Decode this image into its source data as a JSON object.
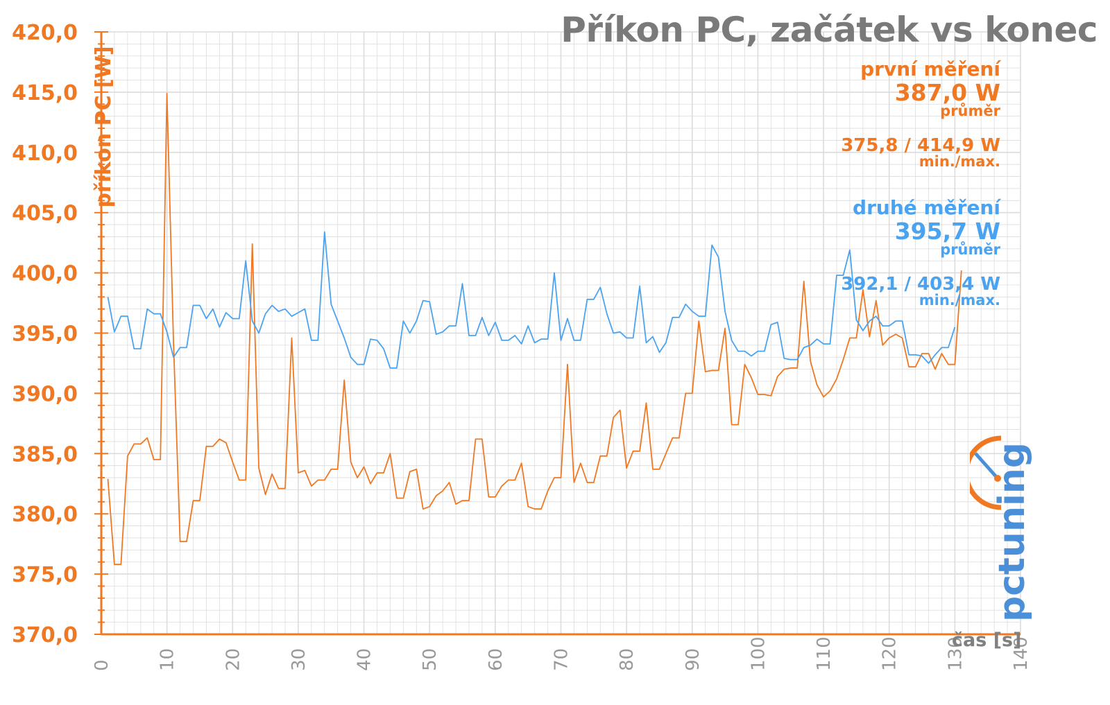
{
  "chart_data": {
    "type": "line",
    "title": "Příkon PC, začátek vs konec",
    "xlabel": "čas [s]",
    "ylabel": "příkon PC [W]",
    "xlim": [
      0,
      140
    ],
    "ylim": [
      370,
      420
    ],
    "xticks": [
      0,
      10,
      20,
      30,
      40,
      50,
      60,
      70,
      80,
      90,
      100,
      110,
      120,
      130,
      140
    ],
    "yticks": [
      370,
      375,
      380,
      385,
      390,
      395,
      400,
      405,
      410,
      415,
      420
    ],
    "ytick_labels": [
      "370,0",
      "375,0",
      "380,0",
      "385,0",
      "390,0",
      "395,0",
      "400,0",
      "405,0",
      "410,0",
      "415,0",
      "420,0"
    ],
    "grid": true,
    "series": [
      {
        "name": "první měření",
        "color": "#f07822",
        "stats": {
          "avg": "387,0 W",
          "avg_label": "průměr",
          "minmax": "375,8 / 414,9 W",
          "minmax_label": "min./max."
        },
        "x": [
          1,
          2,
          3,
          4,
          5,
          6,
          7,
          8,
          9,
          10,
          11,
          12,
          13,
          14,
          15,
          16,
          17,
          18,
          19,
          20,
          21,
          22,
          23,
          24,
          25,
          26,
          27,
          28,
          29,
          30,
          31,
          32,
          33,
          34,
          35,
          36,
          37,
          38,
          39,
          40,
          41,
          42,
          43,
          44,
          45,
          46,
          47,
          48,
          49,
          50,
          51,
          52,
          53,
          54,
          55,
          56,
          57,
          58,
          59,
          60,
          61,
          62,
          63,
          64,
          65,
          66,
          67,
          68,
          69,
          70,
          71,
          72,
          73,
          74,
          75,
          76,
          77,
          78,
          79,
          80,
          81,
          82,
          83,
          84,
          85,
          86,
          87,
          88,
          89,
          90,
          91,
          92,
          93,
          94,
          95,
          96,
          97,
          98,
          99,
          100,
          101,
          102,
          103,
          104,
          105,
          106,
          107,
          108,
          109,
          110,
          111,
          112,
          113,
          114,
          115,
          116,
          117,
          118,
          119,
          120,
          121,
          122,
          123,
          124,
          125,
          126,
          127,
          128,
          129,
          130,
          131
        ],
        "values": [
          382.9,
          375.8,
          375.8,
          384.8,
          385.8,
          385.8,
          386.3,
          384.5,
          384.5,
          414.9,
          394.2,
          377.7,
          377.7,
          381.1,
          381.1,
          385.6,
          385.6,
          386.2,
          385.9,
          384.3,
          382.8,
          382.8,
          402.4,
          383.8,
          381.6,
          383.3,
          382.1,
          382.1,
          394.6,
          383.4,
          383.6,
          382.3,
          382.8,
          382.8,
          383.7,
          383.7,
          391.1,
          384.3,
          383.0,
          383.9,
          382.5,
          383.4,
          383.4,
          385.0,
          381.3,
          381.3,
          383.5,
          383.7,
          380.4,
          380.6,
          381.5,
          381.9,
          382.6,
          380.8,
          381.1,
          381.1,
          386.2,
          386.2,
          381.4,
          381.4,
          382.3,
          382.8,
          382.8,
          384.2,
          380.6,
          380.4,
          380.4,
          381.9,
          383.0,
          383.0,
          392.4,
          382.6,
          384.2,
          382.6,
          382.6,
          384.8,
          384.8,
          388.0,
          388.6,
          383.8,
          385.2,
          385.2,
          389.2,
          383.7,
          383.7,
          385.0,
          386.3,
          386.3,
          390.0,
          390.0,
          396.0,
          391.8,
          391.9,
          391.9,
          395.4,
          387.4,
          387.4,
          392.4,
          391.3,
          389.9,
          389.9,
          389.8,
          391.4,
          392.0,
          392.1,
          392.1,
          399.3,
          392.7,
          390.7,
          389.7,
          390.2,
          391.2,
          392.8,
          394.6,
          394.6,
          398.6,
          394.7,
          397.7,
          394.0,
          394.6,
          394.9,
          394.6,
          392.2,
          392.2,
          393.3,
          393.3,
          392.0,
          393.3,
          392.4,
          392.4,
          400.2
        ]
      },
      {
        "name": "druhé měření",
        "color": "#4aa3f0",
        "stats": {
          "avg": "395,7 W",
          "avg_label": "průměr",
          "minmax": "392,1 / 403,4 W",
          "minmax_label": "min./max."
        },
        "x": [
          1,
          2,
          3,
          4,
          5,
          6,
          7,
          8,
          9,
          10,
          11,
          12,
          13,
          14,
          15,
          16,
          17,
          18,
          19,
          20,
          21,
          22,
          23,
          24,
          25,
          26,
          27,
          28,
          29,
          30,
          31,
          32,
          33,
          34,
          35,
          36,
          37,
          38,
          39,
          40,
          41,
          42,
          43,
          44,
          45,
          46,
          47,
          48,
          49,
          50,
          51,
          52,
          53,
          54,
          55,
          56,
          57,
          58,
          59,
          60,
          61,
          62,
          63,
          64,
          65,
          66,
          67,
          68,
          69,
          70,
          71,
          72,
          73,
          74,
          75,
          76,
          77,
          78,
          79,
          80,
          81,
          82,
          83,
          84,
          85,
          86,
          87,
          88,
          89,
          90,
          91,
          92,
          93,
          94,
          95,
          96,
          97,
          98,
          99,
          100,
          101,
          102,
          103,
          104,
          105,
          106,
          107,
          108,
          109,
          110,
          111,
          112,
          113,
          114,
          115,
          116,
          117,
          118,
          119,
          120,
          121,
          122,
          123,
          124,
          125,
          126,
          127,
          128,
          129,
          130
        ],
        "values": [
          398.0,
          395.1,
          396.4,
          396.4,
          393.7,
          393.7,
          397.0,
          396.6,
          396.6,
          395.1,
          393.0,
          393.8,
          393.8,
          397.3,
          397.3,
          396.2,
          397.0,
          395.5,
          396.7,
          396.2,
          396.2,
          401.0,
          396.0,
          395.0,
          396.6,
          397.3,
          396.8,
          397.0,
          396.4,
          396.7,
          397.0,
          394.4,
          394.4,
          403.4,
          397.4,
          396.0,
          394.6,
          393.0,
          392.4,
          392.4,
          394.5,
          394.4,
          393.7,
          392.1,
          392.1,
          396.0,
          395.0,
          396.0,
          397.7,
          397.6,
          394.9,
          395.1,
          395.6,
          395.6,
          399.1,
          394.8,
          394.8,
          396.3,
          394.8,
          395.9,
          394.4,
          394.4,
          394.8,
          394.1,
          395.6,
          394.2,
          394.5,
          394.5,
          400.0,
          394.4,
          396.2,
          394.4,
          394.4,
          397.8,
          397.8,
          398.8,
          396.6,
          395.0,
          395.1,
          394.6,
          394.6,
          398.9,
          394.2,
          394.7,
          393.4,
          394.2,
          396.3,
          396.3,
          397.4,
          396.8,
          396.4,
          396.4,
          402.3,
          401.3,
          396.8,
          394.4,
          393.5,
          393.5,
          393.1,
          393.5,
          393.5,
          395.7,
          395.9,
          392.9,
          392.8,
          392.8,
          393.8,
          394.0,
          394.5,
          394.1,
          394.1,
          399.8,
          399.8,
          401.9,
          396.1,
          395.2,
          396.0,
          396.4,
          395.6,
          395.6,
          396.0,
          396.0,
          393.2,
          393.2,
          393.1,
          392.5,
          393.2,
          393.8,
          393.8,
          395.5
        ]
      }
    ]
  },
  "legend": {
    "first": {
      "name": "první měření",
      "avg": "387,0 W",
      "avg_label": "průměr",
      "minmax": "375,8 / 414,9 W",
      "minmax_label": "min./max."
    },
    "second": {
      "name": "druhé měření",
      "avg": "395,7 W",
      "avg_label": "průměr",
      "minmax": "392,1 / 403,4 W",
      "minmax_label": "min./max."
    }
  },
  "logo": {
    "text": "pctuning",
    "primary_color": "#f07822",
    "secondary_color": "#4a8fd8"
  },
  "colors": {
    "axis": "#f07822",
    "grid": "#dcdcdc",
    "xtick": "#999999",
    "title": "#7a7a7a"
  }
}
